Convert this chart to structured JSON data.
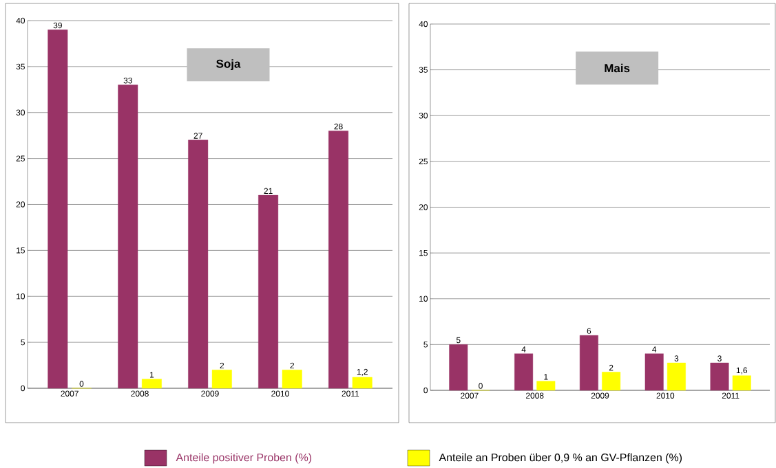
{
  "chart_data": [
    {
      "type": "bar",
      "title": "Soja",
      "categories": [
        "2007",
        "2008",
        "2009",
        "2010",
        "2011"
      ],
      "ylim": [
        0,
        40
      ],
      "yticks": [
        0,
        5,
        10,
        15,
        20,
        25,
        30,
        35,
        40
      ],
      "grid": "y",
      "legend": "bottom",
      "series": [
        {
          "name": "Anteile positiver Proben (%)",
          "color": "#993366",
          "values": [
            39,
            33,
            27,
            21,
            28
          ],
          "value_labels": [
            "39",
            "33",
            "27",
            "21",
            "28"
          ]
        },
        {
          "name": "Anteile an Proben über 0,9 % an GV-Pflanzen (%)",
          "color": "#ffff00",
          "values": [
            0,
            1,
            2,
            2,
            1.2
          ],
          "value_labels": [
            "0",
            "1",
            "2",
            "2",
            "1,2"
          ]
        }
      ]
    },
    {
      "type": "bar",
      "title": "Mais",
      "categories": [
        "2007",
        "2008",
        "2009",
        "2010",
        "2011"
      ],
      "ylim": [
        0,
        40
      ],
      "yticks": [
        0,
        5,
        10,
        15,
        20,
        25,
        30,
        35,
        40
      ],
      "grid": "y",
      "series": [
        {
          "color": "#993366",
          "values": [
            5,
            4,
            6,
            4,
            3
          ],
          "value_labels": [
            "5",
            "4",
            "6",
            "4",
            "3"
          ]
        },
        {
          "color": "#ffff00",
          "values": [
            0,
            1,
            2,
            3,
            1.6
          ],
          "value_labels": [
            "0",
            "1",
            "2",
            "3",
            "1,6"
          ]
        }
      ]
    }
  ]
}
